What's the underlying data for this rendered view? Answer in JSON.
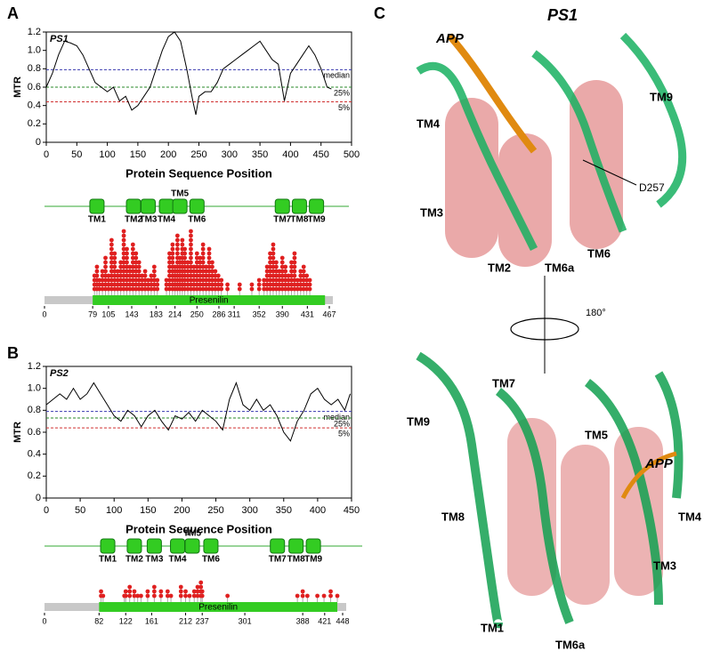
{
  "panel_labels": [
    "A",
    "B",
    "C"
  ],
  "chart_data": [
    {
      "type": "line",
      "title": "PS1",
      "x_label": "Protein Sequence Position",
      "y_label": "MTR",
      "color": "#000000",
      "x": [
        0,
        10,
        20,
        30,
        40,
        50,
        60,
        70,
        80,
        90,
        100,
        110,
        120,
        130,
        140,
        150,
        160,
        170,
        180,
        190,
        200,
        210,
        220,
        230,
        240,
        245,
        250,
        260,
        270,
        280,
        290,
        300,
        310,
        320,
        330,
        340,
        350,
        360,
        370,
        380,
        390,
        400,
        410,
        420,
        430,
        440,
        450,
        460,
        467
      ],
      "values": [
        0.6,
        0.75,
        0.95,
        1.1,
        1.08,
        1.05,
        0.95,
        0.8,
        0.65,
        0.6,
        0.55,
        0.6,
        0.45,
        0.5,
        0.35,
        0.4,
        0.5,
        0.6,
        0.8,
        1.0,
        1.15,
        1.2,
        1.1,
        0.8,
        0.45,
        0.3,
        0.5,
        0.55,
        0.55,
        0.65,
        0.8,
        0.85,
        0.9,
        0.95,
        1.0,
        1.05,
        1.1,
        1.0,
        0.9,
        0.85,
        0.45,
        0.75,
        0.85,
        0.95,
        1.05,
        0.95,
        0.8,
        0.6,
        0.58
      ],
      "reference_lines": [
        {
          "name": "median",
          "value": 0.79,
          "color": "#3a3ab0"
        },
        {
          "name": "25%",
          "value": 0.6,
          "color": "#2a8a2a"
        },
        {
          "name": "5%",
          "value": 0.44,
          "color": "#d03030"
        }
      ],
      "xlim": [
        0,
        500
      ],
      "xticks": [
        0,
        50,
        100,
        150,
        200,
        250,
        300,
        350,
        400,
        450,
        500
      ],
      "ylim": [
        0,
        1.2
      ],
      "yticks": [
        0,
        0.2,
        0.4,
        0.6,
        0.8,
        {
          "value": 1,
          "label": "1.0"
        },
        1.2
      ]
    },
    {
      "type": "lollipop",
      "color": "#e02020",
      "tm_domains": [
        {
          "label": "TM1",
          "position": 86
        },
        {
          "label": "TM2",
          "position": 146
        },
        {
          "label": "TM3",
          "position": 170
        },
        {
          "label": "TM4",
          "position": 200
        },
        {
          "label": "TM5",
          "position": 222
        },
        {
          "label": "TM6",
          "position": 250
        },
        {
          "label": "TM7",
          "position": 390
        },
        {
          "label": "TM8",
          "position": 418
        },
        {
          "label": "TM9",
          "position": 446
        }
      ],
      "domain": {
        "name": "Presenilin",
        "start": 79,
        "end": 460,
        "color": "#33cc22"
      },
      "xlim": [
        0,
        467
      ],
      "xticks": [
        0,
        79,
        105,
        143,
        183,
        214,
        250,
        286,
        311,
        352,
        390,
        431,
        467
      ],
      "positions": [
        82,
        86,
        90,
        95,
        100,
        105,
        110,
        115,
        120,
        125,
        130,
        135,
        140,
        145,
        150,
        155,
        160,
        165,
        170,
        175,
        180,
        185,
        200,
        205,
        210,
        214,
        218,
        222,
        226,
        230,
        235,
        240,
        245,
        250,
        255,
        260,
        265,
        270,
        275,
        280,
        285,
        290,
        300,
        320,
        340,
        352,
        360,
        365,
        370,
        375,
        380,
        385,
        390,
        395,
        400,
        405,
        410,
        415,
        420,
        425,
        430,
        435
      ],
      "counts": [
        4,
        6,
        3,
        5,
        8,
        4,
        12,
        9,
        5,
        7,
        14,
        10,
        6,
        11,
        9,
        7,
        4,
        5,
        3,
        4,
        6,
        3,
        3,
        9,
        11,
        6,
        13,
        8,
        12,
        10,
        7,
        14,
        6,
        9,
        8,
        11,
        6,
        10,
        7,
        5,
        4,
        3,
        2,
        2,
        2,
        3,
        3,
        6,
        9,
        11,
        7,
        5,
        8,
        6,
        4,
        7,
        9,
        3,
        5,
        6,
        4,
        3
      ]
    },
    {
      "type": "line",
      "title": "PS2",
      "x_label": "Protein Sequence Position",
      "y_label": "MTR",
      "color": "#000000",
      "x": [
        0,
        10,
        20,
        30,
        40,
        50,
        60,
        70,
        80,
        90,
        100,
        110,
        120,
        130,
        140,
        150,
        160,
        170,
        180,
        190,
        200,
        210,
        220,
        230,
        240,
        250,
        260,
        270,
        280,
        290,
        300,
        310,
        320,
        330,
        340,
        350,
        360,
        370,
        380,
        390,
        400,
        410,
        420,
        430,
        440,
        448
      ],
      "values": [
        0.85,
        0.9,
        0.95,
        0.9,
        1.0,
        0.9,
        0.95,
        1.05,
        0.95,
        0.85,
        0.75,
        0.7,
        0.8,
        0.75,
        0.65,
        0.75,
        0.8,
        0.7,
        0.62,
        0.75,
        0.72,
        0.78,
        0.7,
        0.8,
        0.75,
        0.7,
        0.62,
        0.9,
        1.05,
        0.85,
        0.8,
        0.9,
        0.8,
        0.85,
        0.75,
        0.6,
        0.52,
        0.7,
        0.8,
        0.95,
        1.0,
        0.9,
        0.85,
        0.9,
        0.8,
        0.95
      ],
      "reference_lines": [
        {
          "name": "median",
          "value": 0.79,
          "color": "#3a3ab0"
        },
        {
          "name": "25%",
          "value": 0.73,
          "color": "#2a8a2a"
        },
        {
          "name": "5%",
          "value": 0.64,
          "color": "#d03030"
        }
      ],
      "xlim": [
        0,
        450
      ],
      "xticks": [
        0,
        50,
        100,
        150,
        200,
        250,
        300,
        350,
        400,
        450
      ],
      "ylim": [
        0,
        1.2
      ],
      "yticks": [
        0,
        0.2,
        0.4,
        0.6,
        0.8,
        {
          "value": 1,
          "label": "1.0"
        },
        1.2
      ]
    },
    {
      "type": "lollipop",
      "color": "#e02020",
      "tm_domains": [
        {
          "label": "TM1",
          "position": 95
        },
        {
          "label": "TM2",
          "position": 135
        },
        {
          "label": "TM3",
          "position": 165
        },
        {
          "label": "TM4",
          "position": 200
        },
        {
          "label": "TM5",
          "position": 222
        },
        {
          "label": "TM6",
          "position": 250
        },
        {
          "label": "TM7",
          "position": 350
        },
        {
          "label": "TM8",
          "position": 378
        },
        {
          "label": "TM9",
          "position": 404
        }
      ],
      "domain": {
        "name": "Presenilin",
        "start": 82,
        "end": 440,
        "color": "#33cc22"
      },
      "xlim": [
        0,
        448
      ],
      "xticks": [
        0,
        82,
        122,
        161,
        212,
        237,
        301,
        388,
        421,
        448
      ],
      "positions": [
        85,
        88,
        120,
        122,
        128,
        135,
        140,
        145,
        155,
        165,
        175,
        185,
        190,
        205,
        212,
        218,
        225,
        230,
        235,
        237,
        275,
        380,
        388,
        395,
        410,
        420,
        430,
        440
      ],
      "counts": [
        2,
        1,
        1,
        2,
        3,
        2,
        1,
        1,
        2,
        3,
        2,
        2,
        1,
        3,
        2,
        1,
        2,
        3,
        4,
        2,
        1,
        1,
        2,
        1,
        1,
        1,
        2,
        1
      ]
    }
  ],
  "structure": {
    "top_labels": [
      "PS1",
      "APP",
      "TM4",
      "TM9",
      "TM3",
      "TM2",
      "TM6a",
      "TM6",
      "D257"
    ],
    "rotation": "180°",
    "bottom_labels": [
      "TM7",
      "TM9",
      "TM5",
      "APP",
      "TM4",
      "TM8",
      "TM3",
      "TM1",
      "TM6a"
    ]
  }
}
